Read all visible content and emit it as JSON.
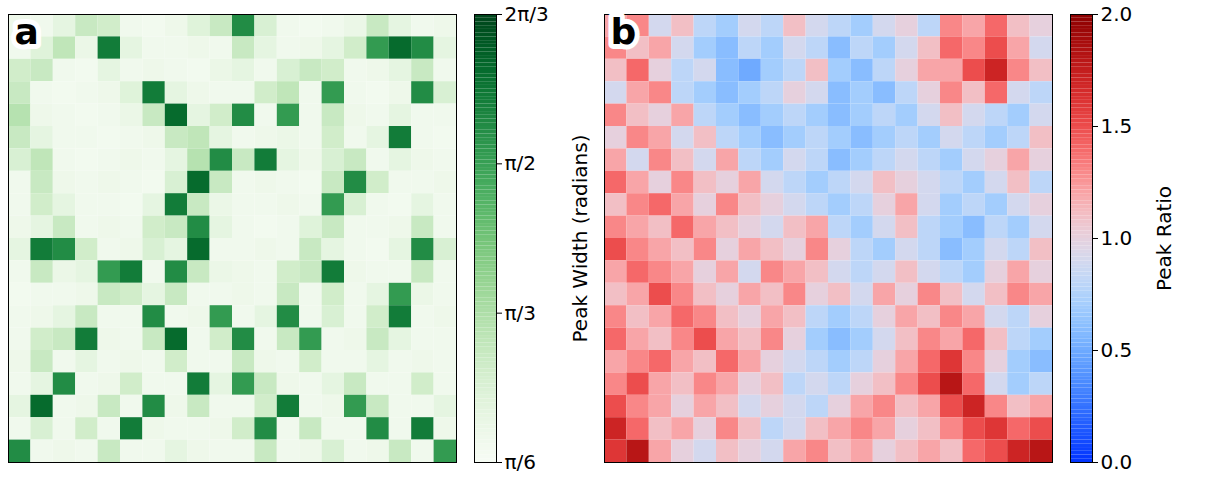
{
  "chart_data": [
    {
      "type": "heatmap",
      "panel_label": "a",
      "color": "greens",
      "tick_labels": false,
      "colorbar_label": "Peak Width (radians)",
      "colorbar_range": [
        0.5236,
        2.0944
      ],
      "colorbar_ticks": [
        {
          "value": 0.5236,
          "label": "π/6"
        },
        {
          "value": 1.0472,
          "label": "π/3"
        },
        {
          "value": 1.5708,
          "label": "π/2"
        },
        {
          "value": 2.0944,
          "label": "2π/3"
        }
      ],
      "cells": [
        [
          0.62,
          0.6,
          0.7,
          0.9,
          0.85,
          0.6,
          0.58,
          0.62,
          0.75,
          0.9,
          1.7,
          0.8,
          0.6,
          0.58,
          0.6,
          0.65,
          0.9,
          0.7,
          0.6,
          0.62
        ],
        [
          0.6,
          0.75,
          0.95,
          0.65,
          1.8,
          0.7,
          0.6,
          0.6,
          0.62,
          0.6,
          0.9,
          0.7,
          0.6,
          0.62,
          0.7,
          0.85,
          1.6,
          1.9,
          1.7,
          0.7
        ],
        [
          0.85,
          0.9,
          0.6,
          0.58,
          0.7,
          0.6,
          0.62,
          0.6,
          0.58,
          0.65,
          0.7,
          0.6,
          0.8,
          0.9,
          0.85,
          0.6,
          0.62,
          0.7,
          0.9,
          0.6
        ],
        [
          0.9,
          0.6,
          0.58,
          0.6,
          0.62,
          0.75,
          1.8,
          0.7,
          0.62,
          0.6,
          0.6,
          0.85,
          0.95,
          0.6,
          1.6,
          0.6,
          0.58,
          0.62,
          1.7,
          0.8
        ],
        [
          1.0,
          0.62,
          0.6,
          0.58,
          0.6,
          0.65,
          0.9,
          1.9,
          0.7,
          0.85,
          1.7,
          0.6,
          1.6,
          0.6,
          0.9,
          0.62,
          0.6,
          0.7,
          0.6,
          0.6
        ],
        [
          0.9,
          0.7,
          0.6,
          0.6,
          0.58,
          0.6,
          0.62,
          0.9,
          0.95,
          0.7,
          0.6,
          0.62,
          0.65,
          0.6,
          0.85,
          0.6,
          0.7,
          1.8,
          0.6,
          0.58
        ],
        [
          0.8,
          0.95,
          0.6,
          0.58,
          0.6,
          0.62,
          0.6,
          0.7,
          1.0,
          1.7,
          0.9,
          1.8,
          0.7,
          0.62,
          0.8,
          0.9,
          0.6,
          0.7,
          0.62,
          0.6
        ],
        [
          0.6,
          0.9,
          0.62,
          0.6,
          0.62,
          0.6,
          0.58,
          0.8,
          1.9,
          0.9,
          0.6,
          0.62,
          0.6,
          0.58,
          0.9,
          1.7,
          0.85,
          0.6,
          0.6,
          0.62
        ],
        [
          0.6,
          0.85,
          0.7,
          0.6,
          0.6,
          0.58,
          0.7,
          1.8,
          0.9,
          0.65,
          0.6,
          0.6,
          0.62,
          0.6,
          1.6,
          0.8,
          0.6,
          0.58,
          0.7,
          0.6
        ],
        [
          0.62,
          0.7,
          0.9,
          0.6,
          0.62,
          0.6,
          0.85,
          0.9,
          1.7,
          0.7,
          0.6,
          0.58,
          0.6,
          0.75,
          0.9,
          0.6,
          0.6,
          0.62,
          0.9,
          0.6
        ],
        [
          0.7,
          1.8,
          1.7,
          0.85,
          0.6,
          0.62,
          0.8,
          0.7,
          1.9,
          0.6,
          0.6,
          0.62,
          0.6,
          0.9,
          0.7,
          0.6,
          0.58,
          0.7,
          1.7,
          0.8
        ],
        [
          0.6,
          0.9,
          0.65,
          0.7,
          1.6,
          1.8,
          0.6,
          1.7,
          0.9,
          0.65,
          0.62,
          0.6,
          0.85,
          0.9,
          1.8,
          0.62,
          0.6,
          0.6,
          0.9,
          0.6
        ],
        [
          0.58,
          0.6,
          0.6,
          0.62,
          0.9,
          0.85,
          0.7,
          0.9,
          0.6,
          0.6,
          0.62,
          0.6,
          0.9,
          0.6,
          0.85,
          0.6,
          0.7,
          1.6,
          0.65,
          0.6
        ],
        [
          0.6,
          0.62,
          0.7,
          0.9,
          0.6,
          0.6,
          1.7,
          0.6,
          0.62,
          1.6,
          0.6,
          0.7,
          1.7,
          0.6,
          0.8,
          0.6,
          0.85,
          1.8,
          0.6,
          0.62
        ],
        [
          0.6,
          0.85,
          0.9,
          1.8,
          0.62,
          0.6,
          0.9,
          1.9,
          0.6,
          0.85,
          1.7,
          0.6,
          0.9,
          1.6,
          0.6,
          0.62,
          0.9,
          0.7,
          0.6,
          0.6
        ],
        [
          0.62,
          0.9,
          0.6,
          0.7,
          0.6,
          0.62,
          0.6,
          0.85,
          0.6,
          0.6,
          0.9,
          0.62,
          0.6,
          0.85,
          0.6,
          0.6,
          0.7,
          0.6,
          0.62,
          0.6
        ],
        [
          0.6,
          0.7,
          1.7,
          0.6,
          0.62,
          0.85,
          0.6,
          0.6,
          1.8,
          0.7,
          1.6,
          0.9,
          0.62,
          0.6,
          0.7,
          0.9,
          0.6,
          0.6,
          0.85,
          0.6
        ],
        [
          0.7,
          1.9,
          0.6,
          0.62,
          0.9,
          0.6,
          1.7,
          0.62,
          0.9,
          0.6,
          0.6,
          0.85,
          1.8,
          0.6,
          0.62,
          1.6,
          0.9,
          0.6,
          0.6,
          0.7
        ],
        [
          0.6,
          0.8,
          0.6,
          0.85,
          0.6,
          1.8,
          0.62,
          0.6,
          0.6,
          0.62,
          0.85,
          1.7,
          0.6,
          0.9,
          0.6,
          0.6,
          1.7,
          0.6,
          1.8,
          0.62
        ],
        [
          1.7,
          0.6,
          0.62,
          0.6,
          0.9,
          0.6,
          0.6,
          0.7,
          0.62,
          0.6,
          0.6,
          0.9,
          0.6,
          0.62,
          0.8,
          0.6,
          0.62,
          0.9,
          0.6,
          1.6
        ]
      ]
    },
    {
      "type": "heatmap",
      "panel_label": "b",
      "color": "blue-white-red",
      "tick_labels": false,
      "colorbar_label": "Peak Ratio",
      "colorbar_range": [
        0,
        2
      ],
      "colorbar_ticks": [
        {
          "value": 0,
          "label": "0.0"
        },
        {
          "value": 0.5,
          "label": "0.5"
        },
        {
          "value": 1,
          "label": "1.0"
        },
        {
          "value": 1.5,
          "label": "1.5"
        },
        {
          "value": 2,
          "label": "2.0"
        }
      ],
      "cells": [
        [
          1.2,
          1.3,
          0.9,
          1.1,
          0.8,
          0.7,
          0.9,
          0.8,
          1.1,
          0.9,
          0.8,
          0.7,
          0.9,
          1.0,
          0.8,
          1.3,
          1.2,
          1.4,
          1.1,
          1.0
        ],
        [
          1.3,
          1.1,
          1.2,
          0.9,
          0.7,
          0.6,
          0.8,
          0.7,
          0.9,
          0.8,
          0.6,
          0.8,
          0.7,
          0.9,
          1.1,
          1.4,
          1.3,
          1.5,
          1.2,
          0.9
        ],
        [
          1.1,
          1.4,
          1.0,
          0.8,
          0.9,
          0.6,
          0.5,
          0.7,
          0.8,
          1.1,
          0.7,
          0.6,
          0.8,
          1.0,
          1.2,
          1.2,
          1.5,
          1.7,
          1.3,
          1.1
        ],
        [
          0.9,
          1.2,
          1.3,
          0.8,
          0.7,
          0.6,
          0.7,
          0.8,
          1.0,
          0.9,
          0.6,
          0.7,
          0.6,
          0.8,
          1.0,
          1.3,
          1.1,
          1.4,
          0.9,
          0.8
        ],
        [
          1.3,
          1.1,
          1.0,
          1.2,
          0.8,
          0.7,
          0.6,
          0.7,
          0.8,
          0.7,
          0.6,
          0.7,
          0.8,
          0.7,
          0.9,
          1.1,
          0.9,
          0.8,
          0.7,
          0.9
        ],
        [
          1.0,
          1.3,
          1.2,
          0.9,
          1.1,
          0.8,
          0.7,
          0.6,
          0.7,
          0.8,
          0.7,
          0.6,
          0.7,
          0.8,
          0.7,
          0.9,
          0.8,
          0.7,
          0.8,
          1.1
        ],
        [
          1.2,
          0.9,
          1.3,
          1.1,
          0.9,
          1.2,
          0.8,
          0.7,
          0.9,
          0.8,
          0.6,
          0.7,
          0.8,
          0.9,
          0.8,
          0.7,
          0.9,
          1.0,
          1.2,
          1.0
        ],
        [
          1.4,
          1.2,
          1.0,
          1.3,
          1.1,
          1.0,
          1.2,
          0.9,
          0.8,
          0.7,
          0.8,
          0.9,
          1.1,
          1.0,
          0.9,
          0.8,
          0.7,
          0.9,
          1.1,
          0.8
        ],
        [
          1.1,
          1.3,
          1.4,
          1.2,
          1.0,
          1.3,
          1.1,
          1.0,
          0.9,
          0.8,
          0.7,
          0.8,
          1.0,
          1.2,
          0.9,
          0.7,
          0.8,
          0.7,
          0.9,
          1.0
        ],
        [
          1.3,
          1.2,
          1.1,
          1.4,
          1.2,
          1.1,
          1.0,
          0.9,
          1.1,
          1.2,
          0.8,
          0.7,
          0.9,
          1.1,
          0.8,
          0.7,
          0.6,
          0.8,
          0.7,
          0.9
        ],
        [
          1.5,
          1.3,
          1.2,
          1.1,
          1.3,
          1.0,
          1.2,
          1.1,
          1.0,
          1.3,
          1.0,
          0.8,
          0.7,
          0.9,
          0.8,
          0.6,
          0.7,
          0.9,
          0.8,
          1.1
        ],
        [
          1.2,
          1.4,
          1.3,
          1.2,
          1.0,
          1.2,
          0.9,
          1.3,
          1.2,
          1.1,
          0.9,
          0.8,
          0.9,
          1.1,
          0.9,
          0.8,
          0.7,
          1.0,
          1.2,
          1.0
        ],
        [
          1.1,
          1.2,
          1.5,
          1.3,
          1.1,
          1.0,
          1.2,
          1.1,
          1.3,
          1.0,
          1.1,
          0.9,
          1.2,
          1.0,
          1.3,
          1.1,
          0.9,
          1.1,
          1.3,
          1.2
        ],
        [
          1.3,
          1.1,
          1.2,
          1.4,
          1.3,
          1.1,
          1.0,
          1.2,
          1.1,
          0.8,
          0.7,
          0.8,
          1.0,
          1.2,
          1.1,
          1.3,
          1.2,
          0.9,
          0.8,
          1.0
        ],
        [
          1.4,
          1.2,
          1.1,
          1.3,
          1.5,
          1.2,
          1.1,
          1.3,
          1.0,
          0.7,
          0.6,
          0.7,
          0.9,
          1.1,
          1.3,
          1.2,
          1.4,
          1.1,
          0.8,
          0.7
        ],
        [
          1.2,
          1.3,
          1.4,
          1.2,
          1.1,
          1.4,
          1.2,
          1.0,
          0.9,
          0.8,
          0.7,
          0.8,
          1.0,
          1.2,
          1.4,
          1.6,
          1.3,
          1.0,
          0.7,
          0.6
        ],
        [
          1.3,
          1.5,
          1.2,
          1.1,
          1.3,
          1.2,
          1.0,
          1.1,
          0.8,
          0.9,
          0.8,
          1.0,
          1.1,
          1.3,
          1.5,
          1.8,
          1.4,
          0.9,
          0.7,
          0.8
        ],
        [
          1.5,
          1.3,
          1.2,
          1.0,
          1.2,
          1.1,
          0.9,
          1.0,
          0.9,
          0.8,
          1.0,
          1.2,
          1.3,
          1.1,
          1.2,
          1.5,
          1.7,
          1.3,
          1.1,
          1.2
        ],
        [
          1.7,
          1.4,
          1.1,
          1.2,
          1.0,
          1.3,
          1.1,
          0.8,
          0.9,
          1.1,
          1.2,
          1.3,
          1.2,
          1.0,
          1.1,
          1.3,
          1.5,
          1.6,
          1.4,
          1.5
        ],
        [
          1.6,
          1.8,
          1.2,
          1.0,
          0.9,
          1.1,
          1.0,
          0.9,
          1.2,
          1.3,
          1.1,
          1.2,
          1.0,
          1.1,
          1.2,
          1.1,
          1.4,
          1.5,
          1.7,
          1.8
        ]
      ]
    }
  ]
}
